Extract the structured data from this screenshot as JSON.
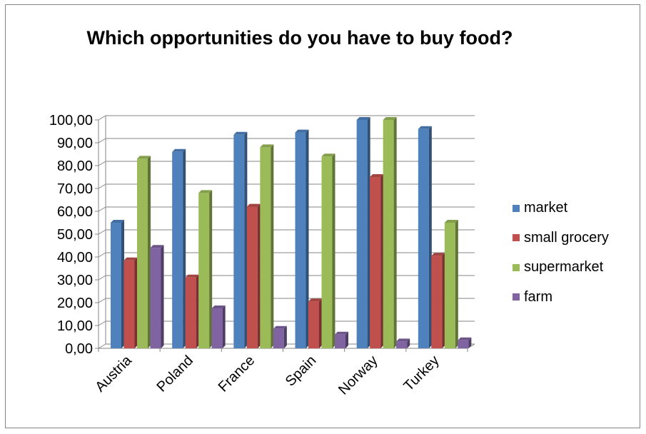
{
  "chart_data": {
    "type": "bar",
    "title": "Which opportunities do you have to buy food?",
    "xlabel": "",
    "ylabel": "",
    "categories": [
      "Austria",
      "Poland",
      "France",
      "Spain",
      "Norway",
      "Turkey"
    ],
    "series": [
      {
        "name": "market",
        "color": "#4f81bd",
        "values": [
          55,
          86,
          93.5,
          94.5,
          100,
          96
        ]
      },
      {
        "name": "small grocery",
        "color": "#c0504d",
        "values": [
          38.5,
          31,
          62,
          20.5,
          75,
          40.5
        ]
      },
      {
        "name": "supermarket",
        "color": "#9bbb59",
        "values": [
          83,
          68,
          88,
          84,
          100,
          55
        ]
      },
      {
        "name": "farm",
        "color": "#8064a2",
        "values": [
          44,
          17.5,
          8.5,
          6,
          3,
          3.5
        ]
      }
    ],
    "ylim": [
      0,
      100
    ],
    "yticks": [
      "0,00",
      "10,00",
      "20,00",
      "30,00",
      "40,00",
      "50,00",
      "60,00",
      "70,00",
      "80,00",
      "90,00",
      "100,00"
    ],
    "grid": true,
    "legend_position": "right",
    "style": "3d-clustered-column"
  }
}
